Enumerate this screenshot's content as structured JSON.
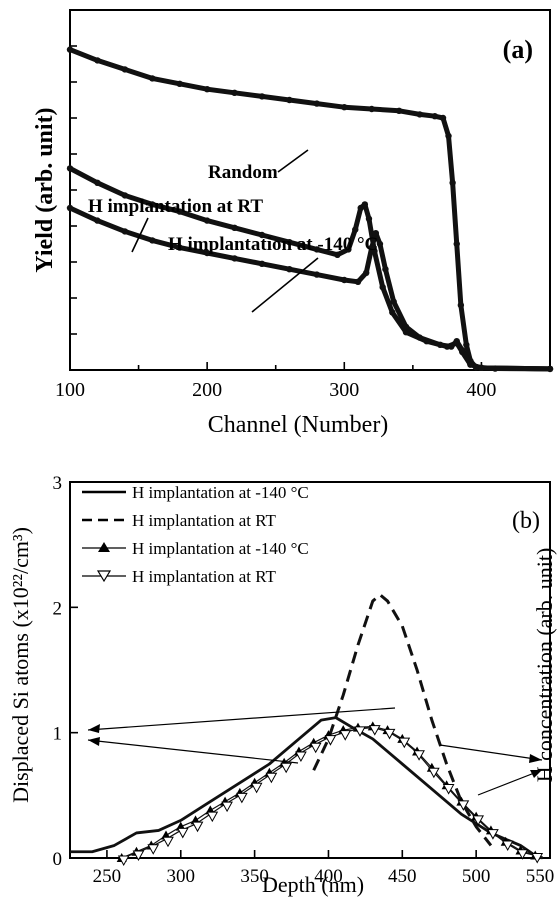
{
  "chart_data": [
    {
      "panel_label": "(a)",
      "type": "line",
      "xlabel": "Channel (Number)",
      "ylabel": "Yield (arb. unit)",
      "xlim": [
        100,
        450
      ],
      "ylim": [
        0,
        10
      ],
      "x_ticks": [
        100,
        200,
        300,
        400
      ],
      "y_ticks_unlabeled": true,
      "series": [
        {
          "name": "Random",
          "color": "#111111",
          "marker": "filled-circle",
          "points": [
            [
              100,
              8.9
            ],
            [
              120,
              8.6
            ],
            [
              140,
              8.35
            ],
            [
              160,
              8.1
            ],
            [
              180,
              7.95
            ],
            [
              200,
              7.8
            ],
            [
              220,
              7.7
            ],
            [
              240,
              7.6
            ],
            [
              260,
              7.5
            ],
            [
              280,
              7.4
            ],
            [
              300,
              7.3
            ],
            [
              320,
              7.25
            ],
            [
              340,
              7.2
            ],
            [
              355,
              7.1
            ],
            [
              366,
              7.05
            ],
            [
              372,
              7.0
            ],
            [
              376,
              6.5
            ],
            [
              379,
              5.2
            ],
            [
              382,
              3.5
            ],
            [
              385,
              1.8
            ],
            [
              389,
              0.7
            ],
            [
              392,
              0.25
            ],
            [
              396,
              0.08
            ],
            [
              410,
              0.04
            ],
            [
              450,
              0.03
            ]
          ]
        },
        {
          "name": "H implantation at RT",
          "color": "#111111",
          "marker": "filled-circle",
          "points": [
            [
              100,
              5.6
            ],
            [
              120,
              5.2
            ],
            [
              140,
              4.85
            ],
            [
              160,
              4.6
            ],
            [
              180,
              4.4
            ],
            [
              200,
              4.15
            ],
            [
              220,
              3.95
            ],
            [
              240,
              3.75
            ],
            [
              260,
              3.55
            ],
            [
              280,
              3.35
            ],
            [
              295,
              3.2
            ],
            [
              303,
              3.35
            ],
            [
              308,
              3.9
            ],
            [
              312,
              4.5
            ],
            [
              315,
              4.6
            ],
            [
              318,
              4.2
            ],
            [
              322,
              3.3
            ],
            [
              328,
              2.3
            ],
            [
              335,
              1.6
            ],
            [
              345,
              1.05
            ],
            [
              360,
              0.8
            ],
            [
              375,
              0.65
            ],
            [
              382,
              0.75
            ],
            [
              386,
              0.5
            ],
            [
              392,
              0.15
            ],
            [
              400,
              0.06
            ],
            [
              450,
              0.03
            ]
          ]
        },
        {
          "name": "H implantation at -140 °C",
          "color": "#111111",
          "marker": "filled-circle",
          "points": [
            [
              100,
              4.5
            ],
            [
              120,
              4.15
            ],
            [
              140,
              3.85
            ],
            [
              160,
              3.6
            ],
            [
              180,
              3.4
            ],
            [
              200,
              3.25
            ],
            [
              220,
              3.1
            ],
            [
              240,
              2.95
            ],
            [
              260,
              2.8
            ],
            [
              280,
              2.65
            ],
            [
              300,
              2.5
            ],
            [
              310,
              2.45
            ],
            [
              316,
              2.7
            ],
            [
              320,
              3.4
            ],
            [
              323,
              3.8
            ],
            [
              326,
              3.5
            ],
            [
              330,
              2.8
            ],
            [
              336,
              1.9
            ],
            [
              345,
              1.2
            ],
            [
              355,
              0.9
            ],
            [
              370,
              0.7
            ],
            [
              378,
              0.65
            ],
            [
              382,
              0.8
            ],
            [
              386,
              0.55
            ],
            [
              392,
              0.15
            ],
            [
              400,
              0.06
            ],
            [
              450,
              0.03
            ]
          ]
        }
      ],
      "annotations": [
        "Random",
        "H implantation at RT",
        "H implantation at -140 °C"
      ]
    },
    {
      "panel_label": "(b)",
      "type": "line",
      "xlabel": "Depth (nm)",
      "ylabel": "Displaced Si atoms (x10²²/cm³)",
      "ylabel_right": "H concentration (arb. unit)",
      "xlim": [
        225,
        550
      ],
      "ylim": [
        0,
        3
      ],
      "x_ticks": [
        250,
        300,
        350,
        400,
        450,
        500,
        550
      ],
      "y_ticks": [
        0,
        1,
        2,
        3
      ],
      "legend_position": "top-left",
      "series": [
        {
          "name": "H implantation at -140 °C",
          "style": "solid",
          "marker": "none",
          "color": "#111111",
          "points": [
            [
              225,
              0.05
            ],
            [
              240,
              0.05
            ],
            [
              255,
              0.1
            ],
            [
              270,
              0.2
            ],
            [
              285,
              0.22
            ],
            [
              300,
              0.3
            ],
            [
              320,
              0.45
            ],
            [
              340,
              0.6
            ],
            [
              360,
              0.75
            ],
            [
              380,
              0.95
            ],
            [
              395,
              1.1
            ],
            [
              405,
              1.12
            ],
            [
              415,
              1.05
            ],
            [
              430,
              0.95
            ],
            [
              450,
              0.75
            ],
            [
              470,
              0.55
            ],
            [
              490,
              0.35
            ],
            [
              510,
              0.2
            ],
            [
              530,
              0.1
            ],
            [
              540,
              0.02
            ],
            [
              545,
              0.0
            ]
          ]
        },
        {
          "name": "H implantation at RT",
          "style": "dashed",
          "marker": "none",
          "color": "#111111",
          "points": [
            [
              390,
              0.7
            ],
            [
              400,
              0.95
            ],
            [
              410,
              1.3
            ],
            [
              420,
              1.7
            ],
            [
              430,
              2.05
            ],
            [
              435,
              2.1
            ],
            [
              440,
              2.05
            ],
            [
              450,
              1.85
            ],
            [
              460,
              1.5
            ],
            [
              470,
              1.1
            ],
            [
              480,
              0.75
            ],
            [
              490,
              0.45
            ],
            [
              500,
              0.25
            ],
            [
              510,
              0.1
            ]
          ]
        },
        {
          "name": "H implantation at -140 °C",
          "style": "thin",
          "marker": "filled-triangle",
          "color": "#111111",
          "points": [
            [
              260,
              0.0
            ],
            [
              270,
              0.05
            ],
            [
              280,
              0.1
            ],
            [
              290,
              0.18
            ],
            [
              300,
              0.25
            ],
            [
              310,
              0.3
            ],
            [
              320,
              0.38
            ],
            [
              330,
              0.45
            ],
            [
              340,
              0.52
            ],
            [
              350,
              0.6
            ],
            [
              360,
              0.68
            ],
            [
              370,
              0.76
            ],
            [
              380,
              0.85
            ],
            [
              390,
              0.92
            ],
            [
              400,
              0.98
            ],
            [
              410,
              1.02
            ],
            [
              420,
              1.04
            ],
            [
              430,
              1.05
            ],
            [
              440,
              1.02
            ],
            [
              450,
              0.95
            ],
            [
              460,
              0.85
            ],
            [
              470,
              0.72
            ],
            [
              480,
              0.58
            ],
            [
              490,
              0.45
            ],
            [
              500,
              0.33
            ],
            [
              510,
              0.22
            ],
            [
              520,
              0.13
            ],
            [
              530,
              0.06
            ],
            [
              540,
              0.02
            ]
          ]
        },
        {
          "name": "H implantation at RT",
          "style": "thin",
          "marker": "open-triangle-down",
          "color": "#111111",
          "points": [
            [
              260,
              0.0
            ],
            [
              270,
              0.04
            ],
            [
              280,
              0.09
            ],
            [
              290,
              0.15
            ],
            [
              300,
              0.22
            ],
            [
              310,
              0.27
            ],
            [
              320,
              0.35
            ],
            [
              330,
              0.43
            ],
            [
              340,
              0.5
            ],
            [
              350,
              0.58
            ],
            [
              360,
              0.66
            ],
            [
              370,
              0.74
            ],
            [
              380,
              0.83
            ],
            [
              390,
              0.9
            ],
            [
              400,
              0.96
            ],
            [
              410,
              1.0
            ],
            [
              420,
              1.03
            ],
            [
              430,
              1.04
            ],
            [
              440,
              1.01
            ],
            [
              450,
              0.94
            ],
            [
              460,
              0.84
            ],
            [
              470,
              0.7
            ],
            [
              480,
              0.57
            ],
            [
              490,
              0.44
            ],
            [
              500,
              0.32
            ],
            [
              510,
              0.21
            ],
            [
              520,
              0.12
            ],
            [
              530,
              0.05
            ],
            [
              540,
              0.02
            ]
          ]
        }
      ]
    }
  ]
}
